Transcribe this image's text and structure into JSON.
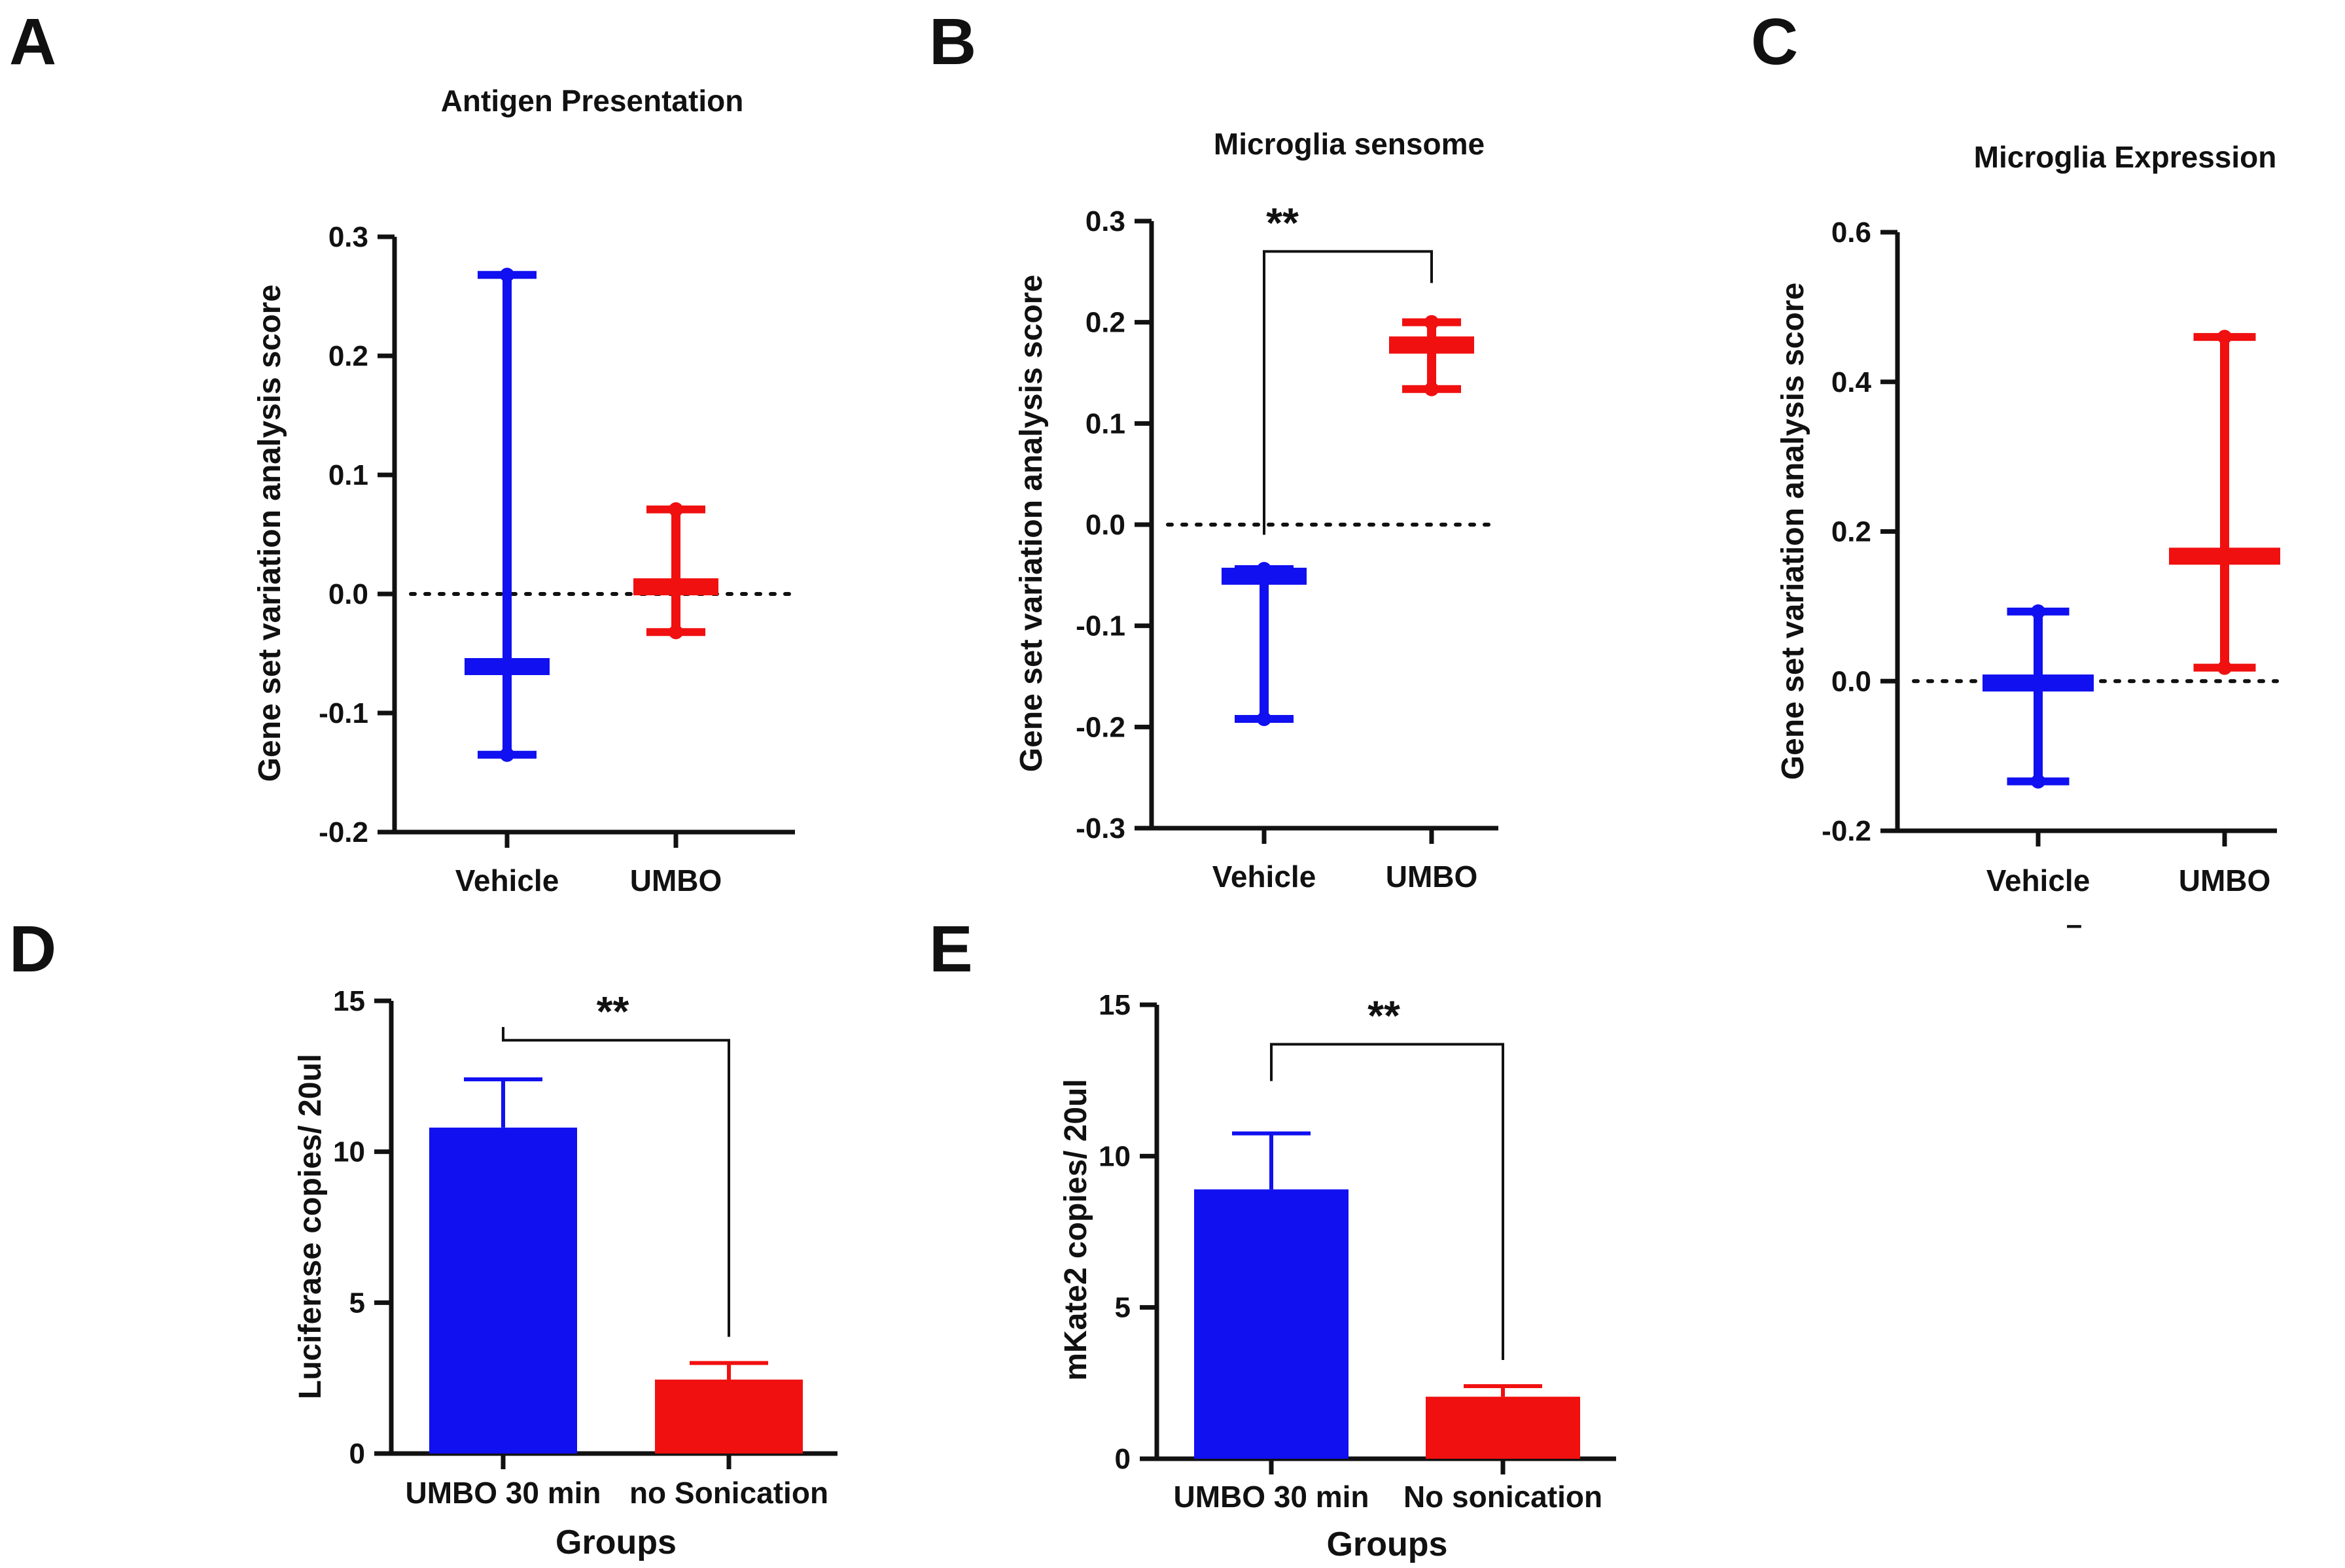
{
  "chart_data": [
    {
      "panel": "A",
      "type": "box",
      "title": "Antigen Presentation",
      "ylabel": "Gene set variation analysis score",
      "xlabel": "",
      "ylim": [
        -0.2,
        0.3
      ],
      "yticks": [
        "-0.2",
        "-0.1",
        "0.0",
        "0.1",
        "0.2",
        "0.3"
      ],
      "categories": [
        "Vehicle",
        "UMBO"
      ],
      "colors": [
        "#1010f0",
        "#f01010"
      ],
      "boxes": [
        {
          "min": -0.135,
          "q1": -0.067,
          "median": -0.061,
          "q3": -0.055,
          "max": 0.268
        },
        {
          "min": -0.032,
          "q1": 0.0,
          "median": 0.006,
          "q3": 0.012,
          "max": 0.071
        }
      ],
      "reference_line": 0.0,
      "significance": ""
    },
    {
      "panel": "B",
      "type": "box",
      "title": "Microglia sensome",
      "ylabel": "Gene set variation analysis score",
      "xlabel": "",
      "ylim": [
        -0.3,
        0.3
      ],
      "yticks": [
        "-0.3",
        "-0.2",
        "-0.1",
        "0.0",
        "0.1",
        "0.2",
        "0.3"
      ],
      "categories": [
        "Vehicle",
        "UMBO"
      ],
      "colors": [
        "#1010f0",
        "#f01010"
      ],
      "boxes": [
        {
          "min": -0.192,
          "q1": -0.058,
          "median": -0.05,
          "q3": -0.044,
          "max": -0.044
        },
        {
          "min": 0.134,
          "q1": 0.169,
          "median": 0.177,
          "q3": 0.186,
          "max": 0.2
        }
      ],
      "reference_line": 0.0,
      "significance": "**"
    },
    {
      "panel": "C",
      "type": "box",
      "title": "Microglia Expression",
      "ylabel": "Gene set variation analysis score",
      "xlabel": "",
      "ylim": [
        -0.2,
        0.6
      ],
      "yticks": [
        "-0.2",
        "0.0",
        "0.2",
        "0.4",
        "0.6"
      ],
      "categories": [
        "Vehicle",
        "UMBO"
      ],
      "colors": [
        "#1010f0",
        "#f01010"
      ],
      "boxes": [
        {
          "min": -0.134,
          "q1": -0.01,
          "median": -0.002,
          "q3": 0.005,
          "max": 0.093
        },
        {
          "min": 0.018,
          "q1": 0.158,
          "median": 0.166,
          "q3": 0.176,
          "max": 0.46
        }
      ],
      "reference_line": 0.0,
      "significance": "",
      "footnote": "–"
    },
    {
      "panel": "D",
      "type": "bar",
      "title": "",
      "ylabel": "Luciferase copies/ 20ul",
      "xlabel": "Groups",
      "ylim": [
        0,
        15
      ],
      "yticks": [
        "0",
        "5",
        "10",
        "15"
      ],
      "categories": [
        "UMBO 30 min",
        "no Sonication"
      ],
      "colors": [
        "#1010f0",
        "#f01010"
      ],
      "values": [
        10.8,
        2.45
      ],
      "errors": [
        1.6,
        0.55
      ],
      "significance": "**"
    },
    {
      "panel": "E",
      "type": "bar",
      "title": "",
      "ylabel": "mKate2 copies/ 20ul",
      "xlabel": "Groups",
      "ylim": [
        0,
        15
      ],
      "yticks": [
        "0",
        "5",
        "10",
        "15"
      ],
      "categories": [
        "UMBO 30 min",
        "No sonication"
      ],
      "colors": [
        "#1010f0",
        "#f01010"
      ],
      "values": [
        8.9,
        2.05
      ],
      "errors": [
        1.85,
        0.35
      ],
      "significance": "**"
    }
  ]
}
